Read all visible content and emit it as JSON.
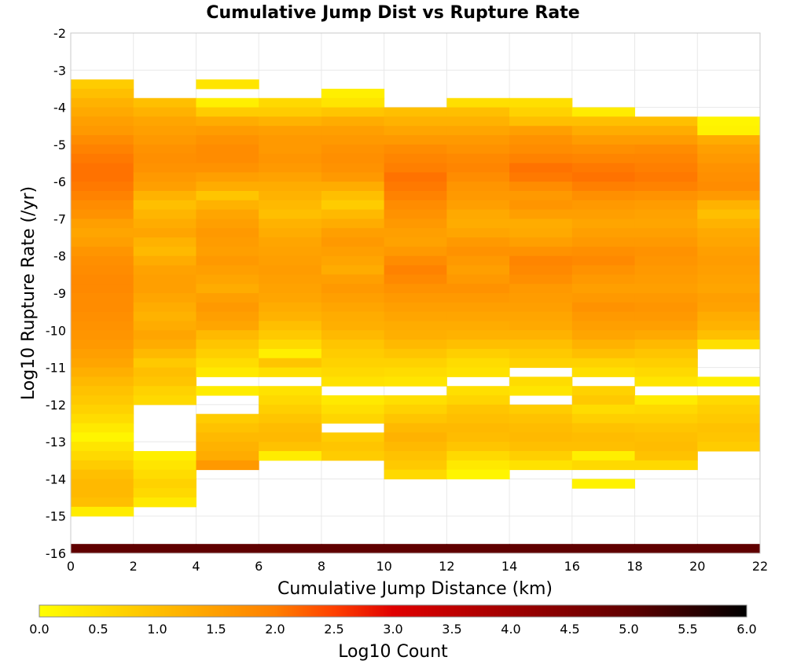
{
  "chart_data": {
    "type": "heatmap",
    "title": "Cumulative Jump Dist vs Rupture Rate",
    "xlabel": "Cumulative Jump Distance (km)",
    "ylabel": "Log10 Rupture Rate (/yr)",
    "xlim": [
      0,
      22
    ],
    "ylim": [
      -16,
      -2
    ],
    "x_ticks": [
      "0",
      "2",
      "4",
      "6",
      "8",
      "10",
      "12",
      "14",
      "16",
      "18",
      "20",
      "22"
    ],
    "y_ticks": [
      "-2",
      "-3",
      "-4",
      "-5",
      "-6",
      "-7",
      "-8",
      "-9",
      "-10",
      "-11",
      "-12",
      "-13",
      "-14",
      "-15",
      "-16"
    ],
    "x_bin_width": 2,
    "y_bin_height": 0.25,
    "grid": true,
    "colorbar": {
      "label": "Log10 Count",
      "range": [
        0.0,
        6.0
      ],
      "ticks": [
        "0.0",
        "0.5",
        "1.0",
        "1.5",
        "2.0",
        "2.5",
        "3.0",
        "3.5",
        "4.0",
        "4.5",
        "5.0",
        "5.5",
        "6.0"
      ],
      "stops": [
        {
          "v": 0.0,
          "color": "#ffff00"
        },
        {
          "v": 1.0,
          "color": "#ffbf00"
        },
        {
          "v": 2.0,
          "color": "#ff7f00"
        },
        {
          "v": 2.5,
          "color": "#ff4000"
        },
        {
          "v": 3.0,
          "color": "#e00000"
        },
        {
          "v": 4.0,
          "color": "#a00000"
        },
        {
          "v": 5.0,
          "color": "#600000"
        },
        {
          "v": 6.0,
          "color": "#000000"
        }
      ]
    },
    "columns": [
      {
        "x0": 0,
        "y_top": -3.25,
        "values": [
          0.8,
          1.0,
          1.2,
          1.35,
          1.5,
          1.6,
          1.8,
          1.95,
          2.05,
          2.1,
          2.1,
          2.05,
          1.95,
          1.8,
          1.7,
          1.5,
          1.4,
          1.5,
          1.65,
          1.75,
          1.8,
          1.85,
          1.85,
          1.8,
          1.8,
          1.75,
          1.7,
          1.65,
          1.6,
          1.5,
          1.4,
          1.25,
          1.1,
          0.95,
          0.85,
          0.7,
          0.55,
          0.35,
          0.15,
          0.4,
          0.6,
          0.8,
          1.0,
          1.1,
          1.1,
          1.0,
          0.3
        ],
        "bottom": {
          "y": -15.75,
          "v": 5.0
        }
      },
      {
        "x0": 2,
        "y_top": -3.75,
        "values": [
          1.0,
          1.2,
          1.4,
          1.5,
          1.6,
          1.7,
          1.75,
          1.7,
          1.6,
          1.5,
          1.2,
          1.0,
          1.15,
          1.3,
          1.4,
          1.2,
          1.1,
          1.3,
          1.45,
          1.5,
          1.5,
          1.4,
          1.3,
          1.2,
          1.3,
          1.4,
          1.3,
          1.1,
          0.85,
          1.0,
          0.9,
          0.7,
          0.6,
          null,
          null,
          null,
          null,
          null,
          0.25,
          0.4,
          0.55,
          0.7,
          0.6,
          0.35
        ],
        "bottom": {
          "y": -15.75,
          "v": 5.0
        }
      },
      {
        "x0": 4,
        "y_top": -3.25,
        "values": [
          0.4,
          null,
          0.25,
          0.8,
          1.3,
          1.55,
          1.7,
          1.8,
          1.8,
          1.7,
          1.5,
          1.3,
          0.9,
          1.2,
          1.4,
          1.5,
          1.6,
          1.55,
          1.5,
          1.6,
          1.5,
          1.4,
          1.3,
          1.5,
          1.6,
          1.5,
          1.4,
          1.1,
          0.9,
          0.75,
          0.55,
          0.35,
          null,
          0.3,
          null,
          null,
          0.8,
          0.95,
          1.1,
          1.2,
          1.3,
          1.6
        ],
        "bottom": {
          "y": -15.75,
          "v": 5.0
        }
      },
      {
        "x0": 6,
        "y_top": -3.75,
        "values": [
          0.6,
          0.8,
          1.2,
          1.5,
          1.6,
          1.6,
          1.65,
          1.6,
          1.45,
          1.3,
          1.2,
          1.1,
          1.0,
          1.2,
          1.3,
          1.4,
          1.45,
          1.5,
          1.55,
          1.5,
          1.45,
          1.4,
          1.3,
          1.2,
          1.0,
          0.85,
          0.6,
          0.25,
          0.9,
          0.5,
          null,
          0.45,
          0.6,
          0.75,
          0.9,
          1.05,
          1.1,
          0.95,
          0.3
        ],
        "bottom": {
          "y": -15.75,
          "v": 5.0
        }
      },
      {
        "x0": 8,
        "y_top": -3.5,
        "values": [
          0.25,
          0.4,
          0.9,
          1.3,
          1.5,
          1.6,
          1.7,
          1.75,
          1.7,
          1.6,
          1.3,
          1.0,
          0.8,
          1.1,
          1.3,
          1.5,
          1.6,
          1.5,
          1.4,
          1.3,
          1.5,
          1.6,
          1.5,
          1.4,
          1.3,
          1.25,
          1.1,
          0.9,
          0.8,
          0.7,
          0.6,
          0.45,
          null,
          0.35,
          0.5,
          0.65,
          null,
          0.8,
          0.9,
          0.8
        ],
        "bottom": {
          "y": -15.75,
          "v": 5.0
        }
      },
      {
        "x0": 10,
        "y_top": -4.0,
        "values": [
          1.0,
          1.2,
          1.4,
          1.6,
          1.8,
          1.9,
          2.0,
          2.1,
          2.05,
          1.95,
          1.8,
          1.7,
          1.6,
          1.5,
          1.45,
          1.6,
          1.8,
          1.95,
          1.85,
          1.7,
          1.6,
          1.5,
          1.4,
          1.3,
          1.25,
          1.1,
          0.9,
          0.7,
          0.55,
          0.4,
          null,
          0.5,
          0.7,
          0.9,
          1.1,
          1.2,
          1.1,
          0.95,
          0.85,
          0.6
        ],
        "bottom": {
          "y": -15.75,
          "v": 5.0
        }
      },
      {
        "x0": 12,
        "y_top": -3.75,
        "values": [
          0.5,
          1.0,
          1.2,
          1.4,
          1.6,
          1.7,
          1.85,
          1.9,
          1.8,
          1.65,
          1.6,
          1.5,
          1.35,
          1.3,
          1.4,
          1.6,
          1.7,
          1.6,
          1.5,
          1.6,
          1.7,
          1.6,
          1.5,
          1.4,
          1.3,
          1.2,
          1.0,
          0.75,
          0.55,
          0.45,
          null,
          0.5,
          0.65,
          0.9,
          1.0,
          1.1,
          1.05,
          0.9,
          0.6,
          0.35,
          0.15
        ],
        "bottom": {
          "y": -15.75,
          "v": 5.0
        }
      },
      {
        "x0": 14,
        "y_top": -3.75,
        "values": [
          0.5,
          0.7,
          1.0,
          1.5,
          1.7,
          1.8,
          1.95,
          2.1,
          2.05,
          1.8,
          1.6,
          1.65,
          1.5,
          1.3,
          1.35,
          1.5,
          1.7,
          1.9,
          1.85,
          1.75,
          1.6,
          1.55,
          1.5,
          1.4,
          1.35,
          1.2,
          1.0,
          0.85,
          0.7,
          null,
          0.55,
          0.4,
          null,
          0.8,
          0.95,
          1.05,
          1.1,
          1.0,
          0.75,
          0.45
        ],
        "bottom": {
          "y": -15.75,
          "v": 5.0
        }
      },
      {
        "x0": 16,
        "y_top": -4.0,
        "values": [
          0.3,
          1.0,
          1.3,
          1.55,
          1.75,
          1.9,
          2.05,
          2.1,
          2.0,
          1.75,
          1.6,
          1.5,
          1.4,
          1.5,
          1.6,
          1.75,
          1.85,
          1.7,
          1.6,
          1.5,
          1.6,
          1.7,
          1.6,
          1.5,
          1.4,
          1.2,
          1.0,
          0.7,
          0.5,
          null,
          0.7,
          0.85,
          0.55,
          0.75,
          0.95,
          1.05,
          1.0,
          0.25,
          0.6,
          null,
          0.2
        ],
        "bottom": {
          "y": -15.75,
          "v": 5.0
        }
      },
      {
        "x0": 18,
        "y_top": -4.25,
        "values": [
          1.0,
          1.3,
          1.55,
          1.8,
          1.9,
          2.0,
          2.05,
          1.95,
          1.7,
          1.55,
          1.45,
          1.4,
          1.5,
          1.6,
          1.7,
          1.65,
          1.6,
          1.55,
          1.5,
          1.6,
          1.65,
          1.6,
          1.5,
          1.35,
          1.1,
          0.9,
          0.75,
          0.6,
          0.4,
          null,
          0.3,
          0.6,
          0.75,
          0.9,
          1.0,
          1.05,
          0.95,
          0.6
        ],
        "bottom": {
          "y": -15.75,
          "v": 5.0
        }
      },
      {
        "x0": 20,
        "y_top": -4.25,
        "values": [
          0.15,
          0.2,
          1.3,
          1.5,
          1.6,
          1.7,
          1.75,
          1.8,
          1.6,
          1.2,
          1.0,
          1.2,
          1.35,
          1.4,
          1.5,
          1.55,
          1.5,
          1.45,
          1.4,
          1.5,
          1.45,
          1.3,
          1.2,
          1.0,
          0.5,
          null,
          null,
          null,
          0.25,
          null,
          0.6,
          0.75,
          0.85,
          0.95,
          0.9,
          0.8
        ],
        "bottom": {
          "y": -15.75,
          "v": 5.0
        }
      }
    ]
  }
}
